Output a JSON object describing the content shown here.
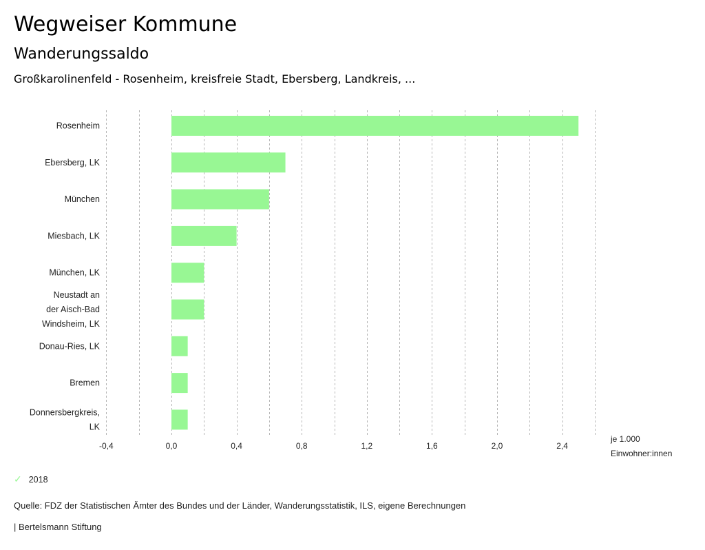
{
  "header": {
    "title": "Wegweiser Kommune",
    "subtitle": "Wanderungssaldo",
    "region": "Großkarolinenfeld - Rosenheim, kreisfreie Stadt, Ebersberg, Landkreis, ..."
  },
  "chart_data": {
    "type": "bar",
    "orientation": "horizontal",
    "title": "Wanderungssaldo",
    "categories": [
      [
        "Rosenheim"
      ],
      [
        "Ebersberg, LK"
      ],
      [
        "München"
      ],
      [
        "Miesbach, LK"
      ],
      [
        "München, LK"
      ],
      [
        "Neustadt an",
        "der Aisch-Bad",
        "Windsheim, LK"
      ],
      [
        "Donau-Ries, LK"
      ],
      [
        "Bremen"
      ],
      [
        "Donnersbergkreis,",
        "LK"
      ]
    ],
    "series": [
      {
        "name": "2018",
        "color": "#98f794",
        "values": [
          2.5,
          0.7,
          0.6,
          0.4,
          0.2,
          0.2,
          0.1,
          0.1,
          0.1
        ]
      }
    ],
    "xlim": [
      -0.4,
      2.6
    ],
    "xticks": [
      "-0,4",
      "0,0",
      "0,4",
      "0,8",
      "1,2",
      "1,6",
      "2,0",
      "2,4"
    ],
    "xtick_values": [
      -0.4,
      0.0,
      0.4,
      0.8,
      1.2,
      1.6,
      2.0,
      2.4
    ],
    "grid_step": 0.2,
    "unit_label": [
      "je 1.000",
      "Einwohner:innen"
    ],
    "grid": true,
    "legend": "bottom-left"
  },
  "legend": {
    "items": [
      {
        "label": "2018",
        "icon": "check-icon",
        "color": "#98f794"
      }
    ]
  },
  "footer": {
    "source": "Quelle: FDZ der Statistischen Ämter des Bundes und der Länder, Wanderungsstatistik, ILS, eigene Berechnungen",
    "brand": "| Bertelsmann Stiftung"
  }
}
